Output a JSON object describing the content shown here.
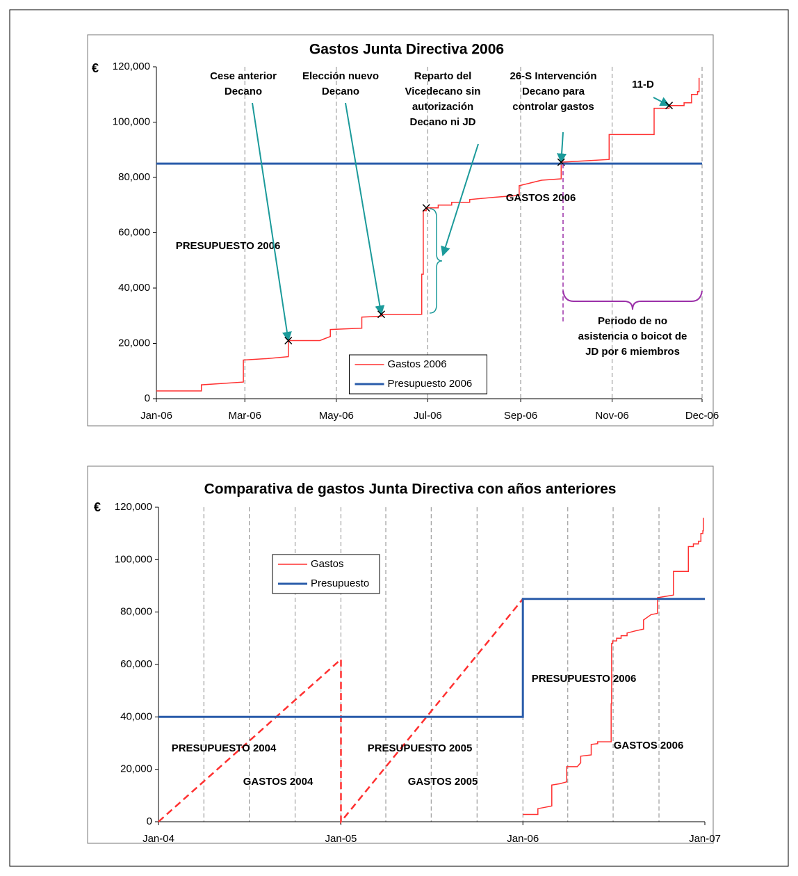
{
  "chart_data": [
    {
      "type": "line",
      "title": "Gastos Junta Directiva 2006",
      "y_label": "€",
      "xlim": [
        38718,
        39082
      ],
      "xticks": [
        {
          "value": 38718,
          "label": "Jan-06"
        },
        {
          "value": 38777,
          "label": "Mar-06"
        },
        {
          "value": 38838,
          "label": "May-06"
        },
        {
          "value": 38899,
          "label": "Jul-06"
        },
        {
          "value": 38961,
          "label": "Sep-06"
        },
        {
          "value": 39022,
          "label": "Nov-06"
        },
        {
          "value": 39082,
          "label": "Dec-06"
        }
      ],
      "ylim": [
        0,
        120000
      ],
      "yticks": [
        0,
        {
          "value": 20000,
          "label": "20,000"
        },
        {
          "value": 40000,
          "label": "40,000"
        },
        {
          "value": 60000,
          "label": "60,000"
        },
        {
          "value": 80000,
          "label": "80,000"
        },
        {
          "value": 100000,
          "label": "100,000"
        },
        {
          "value": 120000,
          "label": "120,000"
        }
      ],
      "grid": true,
      "legend": "lower center",
      "series": [
        {
          "name": "Gastos 2006",
          "color": "#ff3030",
          "linewidth": 1.5,
          "x": [
            38718,
            38748,
            38748,
            38762,
            38776,
            38776,
            38792,
            38806,
            38806,
            38827,
            38834,
            38834,
            38855,
            38855,
            38868,
            38868,
            38895,
            38895,
            38896,
            38896,
            38898,
            38898,
            38906,
            38906,
            38915,
            38915,
            38927,
            38927,
            38943,
            38960,
            38960,
            38975,
            38988,
            38988,
            39020,
            39020,
            39050,
            39050,
            39060,
            39060,
            39070,
            39070,
            39075,
            39075,
            39079,
            39079,
            39080,
            39080
          ],
          "values": [
            2800,
            2800,
            5000,
            5500,
            6000,
            14000,
            14500,
            15200,
            21000,
            21000,
            22500,
            25000,
            25500,
            29500,
            29800,
            30500,
            30500,
            45000,
            45000,
            68000,
            68000,
            69000,
            69000,
            70000,
            70000,
            71000,
            71000,
            72000,
            72800,
            73500,
            77000,
            79000,
            79500,
            85500,
            86500,
            95500,
            95500,
            105000,
            105000,
            106000,
            106000,
            107000,
            107000,
            110000,
            110000,
            111000,
            111000,
            116000
          ]
        },
        {
          "name": "Presupuesto 2006",
          "color": "#2a5caa",
          "linewidth": 3,
          "x": [
            38718,
            39082
          ],
          "values": [
            85000,
            85000
          ]
        }
      ],
      "labels": [
        {
          "text": "PRESUPUESTO 2006",
          "color": "#2a5caa"
        },
        {
          "text": "GASTOS 2006",
          "color": "#ff3030"
        }
      ],
      "annotation_color": "#1b9a9a",
      "annotations": [
        {
          "text": [
            "Cese anterior",
            "Decano"
          ],
          "x": 38806,
          "y": 21000
        },
        {
          "text": [
            "Elección nuevo",
            "Decano"
          ],
          "x": 38868,
          "y": 30500
        },
        {
          "text": [
            "Reparto del",
            "Vicedecano sin",
            "autorización",
            "Decano ni JD"
          ],
          "x": 38898,
          "y": 69000
        },
        {
          "text": [
            "26-S Intervención",
            "Decano para",
            "controlar gastos"
          ],
          "x": 38988,
          "y": 85500
        },
        {
          "text": [
            "11-D"
          ],
          "x": 39060,
          "y": 106000
        }
      ],
      "period": {
        "text": [
          "Periodo de no",
          "asistencia o boicot de",
          "JD por 6 miembros"
        ],
        "color": "#9b30a8"
      }
    },
    {
      "type": "line",
      "title": "Comparativa de gastos Junta Directiva con años anteriores",
      "y_label": "€",
      "xlim": [
        37987,
        39083
      ],
      "xticks": [
        {
          "value": 37987,
          "label": "Jan-04"
        },
        {
          "value": 38353,
          "label": "Jan-05"
        },
        {
          "value": 38718,
          "label": "Jan-06"
        },
        {
          "value": 39083,
          "label": "Jan-07"
        }
      ],
      "xgrid": [
        38078,
        38169,
        38261,
        38353,
        38443,
        38534,
        38626,
        38718,
        38808,
        38899,
        38991
      ],
      "ylim": [
        0,
        120000
      ],
      "yticks": [
        0,
        {
          "value": 20000,
          "label": "20,000"
        },
        {
          "value": 40000,
          "label": "40,000"
        },
        {
          "value": 60000,
          "label": "60,000"
        },
        {
          "value": 80000,
          "label": "80,000"
        },
        {
          "value": 100000,
          "label": "100,000"
        },
        {
          "value": 120000,
          "label": "120,000"
        }
      ],
      "legend": "upper left",
      "series": [
        {
          "name": "Gastos",
          "color": "#ff3030",
          "linewidth": 1.5,
          "x": [
            38718,
            38748,
            38748,
            38762,
            38776,
            38776,
            38792,
            38806,
            38806,
            38827,
            38834,
            38834,
            38855,
            38855,
            38868,
            38868,
            38895,
            38895,
            38896,
            38896,
            38898,
            38898,
            38906,
            38906,
            38915,
            38915,
            38927,
            38927,
            38943,
            38960,
            38960,
            38975,
            38988,
            38988,
            39020,
            39020,
            39050,
            39050,
            39060,
            39060,
            39070,
            39070,
            39075,
            39075,
            39079,
            39079,
            39080,
            39080
          ],
          "values": [
            2800,
            2800,
            5000,
            5500,
            6000,
            14000,
            14500,
            15200,
            21000,
            21000,
            22500,
            25000,
            25500,
            29500,
            29800,
            30500,
            30500,
            45000,
            45000,
            68000,
            68000,
            69000,
            69000,
            70000,
            70000,
            71000,
            71000,
            72000,
            72800,
            73500,
            77000,
            79000,
            79500,
            85500,
            86500,
            95500,
            95500,
            105000,
            105000,
            106000,
            106000,
            107000,
            107000,
            110000,
            110000,
            111000,
            111000,
            116000
          ]
        },
        {
          "name": "Presupuesto",
          "color": "#2a5caa",
          "linewidth": 3,
          "x": [
            37987,
            38718,
            38718,
            39083
          ],
          "values": [
            40000,
            40000,
            85000,
            85000
          ]
        }
      ],
      "dashed_series": [
        {
          "color": "#ff3030",
          "x": [
            37987,
            38353,
            38353,
            38718
          ],
          "values": [
            0,
            62000,
            0,
            85000
          ]
        }
      ],
      "labels": [
        {
          "text": "PRESUPUESTO 2004",
          "color": "#2a5caa"
        },
        {
          "text": "GASTOS 2004",
          "color": "#ff3030"
        },
        {
          "text": "PRESUPUESTO 2005",
          "color": "#2a5caa"
        },
        {
          "text": "GASTOS 2005",
          "color": "#ff3030"
        },
        {
          "text": "PRESUPUESTO 2006",
          "color": "#2a5caa"
        },
        {
          "text": "GASTOS 2006",
          "color": "#ff3030"
        }
      ]
    }
  ]
}
